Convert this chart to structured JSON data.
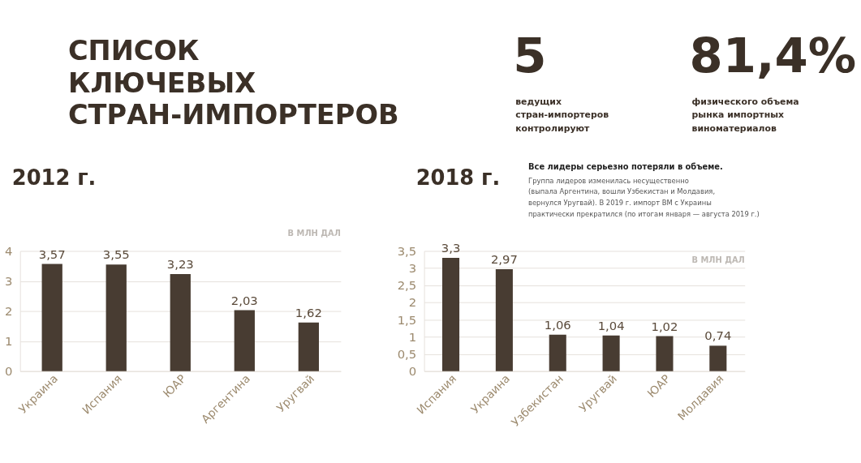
{
  "chart_data": [
    {
      "type": "other",
      "title": "СПИСОК\nКЛЮЧЕВЫХ\nСТРАН-ИМПОРТЕРОВ",
      "annotations": [
        "5",
        "ведущих\nстран-импортеров\nконтролируют",
        "81,4%",
        "физического объема\nрынка импортных\nвиноматериалов"
      ]
    },
    {
      "type": "bar",
      "title": "2012 г.",
      "categories": [
        "Украина",
        "Испания",
        "ЮАР",
        "Аргентина",
        "Уругвай"
      ],
      "values": [
        3.57,
        3.55,
        3.23,
        2.03,
        1.62
      ],
      "value_labels": [
        "3,57",
        "3,55",
        "3,23",
        "2,03",
        "1,62"
      ],
      "color": "#483c32",
      "ylim": [
        0,
        4
      ],
      "yticks": [
        0,
        1,
        2,
        3,
        4
      ],
      "grid": "y",
      "annotations": [
        "В МЛН ДАЛ"
      ]
    },
    {
      "type": "bar",
      "title": "2018 г.",
      "subtitle": "Все лидеры серьезно потеряли в объеме.",
      "categories": [
        "Испания",
        "Украина",
        "Узбекистан",
        "Уругвай",
        "ЮАР",
        "Молдавия"
      ],
      "values": [
        3.3,
        2.97,
        1.06,
        1.04,
        1.02,
        0.74
      ],
      "value_labels": [
        "3,3",
        "2,97",
        "1,06",
        "1,04",
        "1,02",
        "0,74"
      ],
      "color": "#483c32",
      "ylim": [
        0,
        3.5
      ],
      "yticks": [
        0,
        {
          "value": 0.5,
          "label": "0,5"
        },
        1,
        {
          "value": 1.5,
          "label": "1,5"
        },
        2,
        {
          "value": 2.5,
          "label": "2,5"
        },
        3,
        {
          "value": 3.5,
          "label": "3,5"
        }
      ],
      "grid": "y",
      "annotations": [
        "В МЛН ДАЛ",
        "Группа лидеров изменилась несущественно\n(выпала Аргентина, вошли Узбекистан и Молдавия,\nвернулся Уругвай). В 2019 г. импорт ВМ с Украины\nпрактически прекратился (по итогам января — августа 2019 г.)"
      ]
    }
  ]
}
